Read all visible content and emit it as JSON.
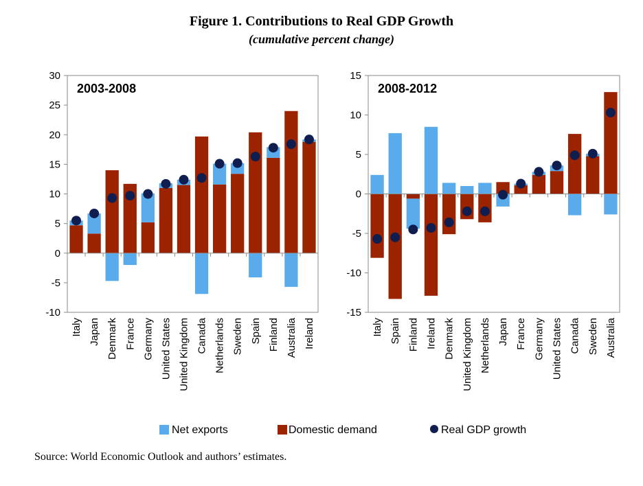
{
  "figure": {
    "title": "Figure 1. Contributions to Real GDP Growth",
    "subtitle": "(cumulative percent change)",
    "source": "Source: World Economic Outlook and authors’ estimates."
  },
  "legend": {
    "net_exports": "Net exports",
    "domestic_demand": "Domestic demand",
    "real_gdp_growth": "Real GDP growth"
  },
  "colors": {
    "net_exports": "#5aabec",
    "domestic_demand": "#9c2300",
    "real_gdp_growth": "#0f1d4f"
  },
  "chart_data": [
    {
      "type": "bar",
      "panel_label": "2003-2008",
      "ylim": [
        -10,
        30
      ],
      "yticks": [
        -10,
        -5,
        0,
        5,
        10,
        15,
        20,
        25,
        30
      ],
      "categories": [
        "Italy",
        "Japan",
        "Denmark",
        "France",
        "Germany",
        "United States",
        "United Kingdom",
        "Canada",
        "Netherlands",
        "Sweden",
        "Spain",
        "Finland",
        "Australia",
        "Ireland"
      ],
      "series": [
        {
          "name": "Net exports",
          "values": [
            0.8,
            3.4,
            -4.7,
            -2.0,
            4.9,
            0.8,
            0.9,
            -6.9,
            3.5,
            1.8,
            -4.1,
            1.8,
            -5.7,
            0.4
          ]
        },
        {
          "name": "Domestic demand",
          "values": [
            4.7,
            3.3,
            14.0,
            11.7,
            5.2,
            11.0,
            11.5,
            19.7,
            11.6,
            13.4,
            20.4,
            16.1,
            24.0,
            18.8
          ]
        },
        {
          "name": "Real GDP growth",
          "values": [
            5.5,
            6.7,
            9.3,
            9.7,
            10.0,
            11.7,
            12.4,
            12.7,
            15.1,
            15.2,
            16.3,
            17.8,
            18.4,
            19.2
          ]
        }
      ]
    },
    {
      "type": "bar",
      "panel_label": "2008-2012",
      "ylim": [
        -15,
        15
      ],
      "yticks": [
        -15,
        -10,
        -5,
        0,
        5,
        10,
        15
      ],
      "categories": [
        "Italy",
        "Spain",
        "Finland",
        "Ireland",
        "Denmark",
        "United Kingdom",
        "Netherlands",
        "Japan",
        "France",
        "Germany",
        "United States",
        "Canada",
        "Sweden",
        "Australia"
      ],
      "series": [
        {
          "name": "Net exports",
          "values": [
            2.4,
            7.7,
            -3.8,
            8.5,
            1.4,
            1.0,
            1.4,
            -1.6,
            0.2,
            0.4,
            0.7,
            -2.7,
            0.3,
            -2.6
          ]
        },
        {
          "name": "Domestic demand",
          "values": [
            -8.1,
            -13.3,
            -0.6,
            -12.9,
            -5.1,
            -3.2,
            -3.6,
            1.5,
            1.1,
            2.4,
            2.9,
            7.6,
            4.8,
            12.9
          ]
        },
        {
          "name": "Real GDP growth",
          "values": [
            -5.7,
            -5.5,
            -4.5,
            -4.3,
            -3.6,
            -2.2,
            -2.2,
            -0.1,
            1.3,
            2.8,
            3.6,
            4.9,
            5.1,
            10.3
          ]
        }
      ]
    }
  ]
}
